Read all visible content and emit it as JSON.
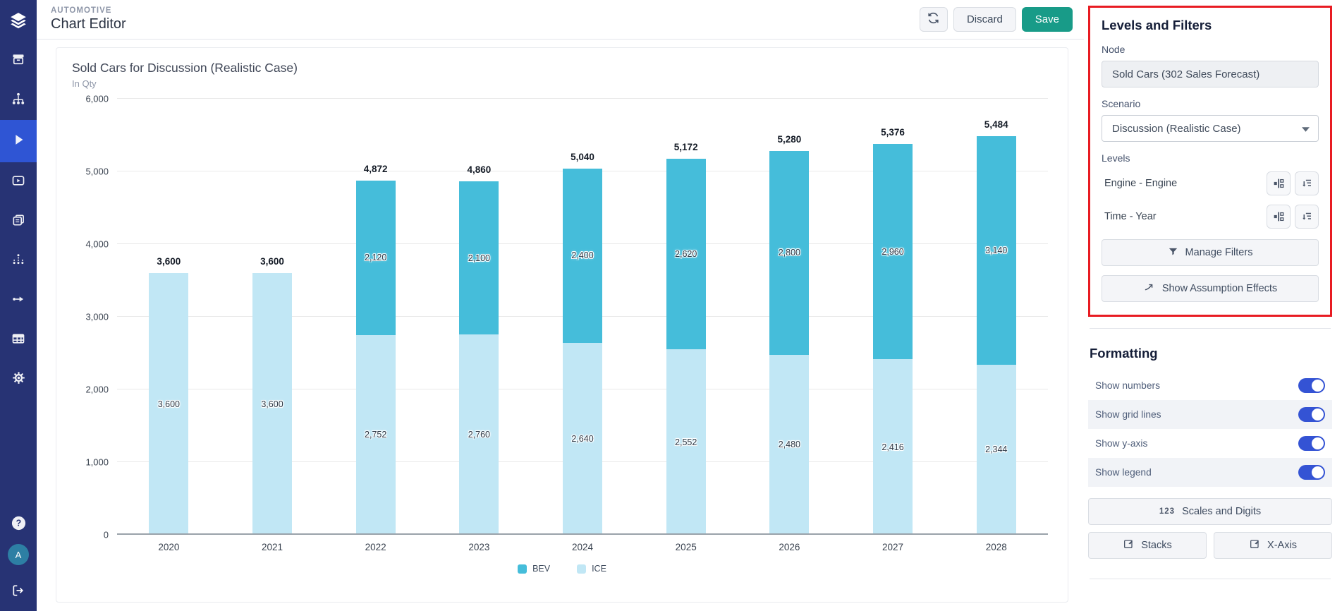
{
  "app": {
    "section_label": "AUTOMOTIVE",
    "page_title": "Chart Editor"
  },
  "header": {
    "discard_label": "Discard",
    "save_label": "Save",
    "refresh_icon": "refresh-icon"
  },
  "sidebar": {
    "icons": [
      "layers-logo-icon",
      "archive-icon",
      "hierarchy-icon",
      "play-icon",
      "video-icon",
      "pages-icon",
      "network-dots-icon",
      "flow-arrow-icon",
      "table-icon",
      "gear-icon",
      "help-icon",
      "avatar",
      "logout-icon"
    ],
    "active_icon": "play-icon",
    "avatar_letter": "A"
  },
  "chart_data": {
    "type": "bar",
    "stacked": true,
    "title": "Sold Cars for Discussion (Realistic Case)",
    "subtitle": "In Qty",
    "categories": [
      "2020",
      "2021",
      "2022",
      "2023",
      "2024",
      "2025",
      "2026",
      "2027",
      "2028"
    ],
    "series": [
      {
        "name": "BEV",
        "color": "#45bdda",
        "values": [
          0,
          0,
          2120,
          2100,
          2400,
          2620,
          2800,
          2960,
          3140
        ]
      },
      {
        "name": "ICE",
        "color": "#c1e7f5",
        "values": [
          3600,
          3600,
          2752,
          2760,
          2640,
          2552,
          2480,
          2416,
          2344
        ]
      }
    ],
    "totals": [
      3600,
      3600,
      4872,
      4860,
      5040,
      5172,
      5280,
      5376,
      5484
    ],
    "ylim": [
      0,
      6000
    ],
    "ytick_step": 1000,
    "grid": true,
    "legend_position": "bottom"
  },
  "panel": {
    "heading": "Levels and Filters",
    "node_label": "Node",
    "node_value": "Sold Cars (302 Sales Forecast)",
    "scenario_label": "Scenario",
    "scenario_value": "Discussion (Realistic Case)",
    "levels_label": "Levels",
    "levels": [
      {
        "label": "Engine - Engine"
      },
      {
        "label": "Time - Year"
      }
    ],
    "manage_filters_label": "Manage Filters",
    "show_assumption_label": "Show Assumption Effects",
    "highlight_color": "#e81b22"
  },
  "formatting": {
    "heading": "Formatting",
    "toggles": [
      {
        "label": "Show numbers",
        "on": true
      },
      {
        "label": "Show grid lines",
        "on": true
      },
      {
        "label": "Show y-axis",
        "on": true
      },
      {
        "label": "Show legend",
        "on": true
      }
    ],
    "scales_digits_prefix": "123",
    "scales_digits_label": "Scales and Digits",
    "stacks_label": "Stacks",
    "xaxis_label": "X-Axis"
  }
}
